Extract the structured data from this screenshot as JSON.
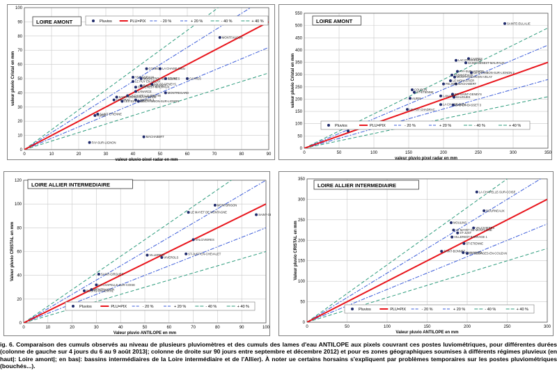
{
  "caption": "ig. 6. Comparaison des cumuls observés au niveau de plusieurs pluviomètres et des cumuls des lames d'eau ANTILOPE aux pixels couvrant ces postes luviométriques, pour différentes durées (colonne de gauche sur 4 jours du 6 au 9 août 2013|; colonne de droite sur 90 jours entre septembre et décembre 2012) et pour es zones géographiques soumises à différents régimes pluvieux (en haut|: Loire amont|; en bas|: bassins intermédiaires de la Loire intermédiaire et de l'Allier). À noter ue certains horsains s'expliquent par problèmes temporaires sur les postes pluviométriques (bouchés...).",
  "colors": {
    "points": "#1f2a6b",
    "one_to_one": "#e8141b",
    "pct20": "#3a5bd9",
    "pct40": "#2a9a7a",
    "grid": "#c8c8c8",
    "frame": "#7f7f7f"
  },
  "chart_data": [
    {
      "type": "scatter",
      "title": "LOIRE AMONT",
      "xlabel": "valeur pluvio pixel radar en mm",
      "ylabel": "valeur pluvio Cristal en mm",
      "xlim": [
        0,
        90
      ],
      "ylim": [
        0,
        100
      ],
      "xticks": [
        0,
        10,
        20,
        30,
        40,
        50,
        60,
        70,
        80,
        90
      ],
      "yticks": [
        0,
        10,
        20,
        30,
        40,
        50,
        60,
        70,
        80,
        90,
        100
      ],
      "grid": true,
      "legend": {
        "position": "top-right",
        "entries": [
          "Pluvios",
          "PLU=PIX",
          "- 20 %",
          "+ 20 %",
          "- 40 %",
          "+ 40 %"
        ]
      },
      "series": [
        {
          "name": "Pluvios",
          "points": [
            {
              "x": 72,
              "y": 79,
              "label": "MONTFAUCON"
            },
            {
              "x": 45,
              "y": 57,
              "label": "COUBON"
            },
            {
              "x": 50,
              "y": 57,
              "label": "LA CHAISE-DIEU"
            },
            {
              "x": 40,
              "y": 51,
              "label": "YSSINGEAUX"
            },
            {
              "x": 43,
              "y": 50,
              "label": "MONISTROL SUR LOIRE"
            },
            {
              "x": 52,
              "y": 50,
              "label": "FELINES"
            },
            {
              "x": 40,
              "y": 48,
              "label": "LE PUY EN VELAY"
            },
            {
              "x": 60,
              "y": 50,
              "label": "CAYRES"
            },
            {
              "x": 47,
              "y": 46,
              "label": "FIX ST GENEYS"
            },
            {
              "x": 43,
              "y": 45,
              "label": "BAS EN BASSET"
            },
            {
              "x": 41,
              "y": 44,
              "label": "ST-GENEST-MALIFAUX"
            },
            {
              "x": 41,
              "y": 41,
              "label": "LANARCE"
            },
            {
              "x": 52,
              "y": 40,
              "label": "MONTREGARD"
            },
            {
              "x": 38,
              "y": 38,
              "label": "LA CHAPELLE-BERTIN"
            },
            {
              "x": 34,
              "y": 37,
              "label": "SAINT-GERMAIN-LAPRADE"
            },
            {
              "x": 41,
              "y": 35,
              "label": "LANARCE 2"
            },
            {
              "x": 33,
              "y": 35,
              "label": "CHADRAC"
            },
            {
              "x": 36,
              "y": 34,
              "label": "LES ESTABLES"
            },
            {
              "x": 42,
              "y": 34,
              "label": "LE CHAMBON-SUR-LIGNON"
            },
            {
              "x": 27,
              "y": 25,
              "label": "SAINT-ETIENNE"
            },
            {
              "x": 26,
              "y": 24,
              "label": "AURIS"
            },
            {
              "x": 44,
              "y": 9,
              "label": "MACHABERT"
            },
            {
              "x": 24,
              "y": 5,
              "label": "FAY-SUR-LIGNON"
            }
          ]
        }
      ]
    },
    {
      "type": "scatter",
      "title": "LOIRE AMONT",
      "xlabel": "valeur pluvio pixel radar en mm",
      "ylabel": "valeur pluvio Cristal en mm",
      "xlim": [
        0,
        350
      ],
      "ylim": [
        0,
        550
      ],
      "xticks": [
        0,
        50,
        100,
        150,
        200,
        250,
        300,
        350
      ],
      "yticks": [
        0,
        50,
        100,
        150,
        200,
        250,
        300,
        350,
        400,
        450,
        500,
        550
      ],
      "grid": true,
      "legend": {
        "position": "bottom-left",
        "entries": [
          "Pluvios",
          "PLU=PIX",
          "- 20 %",
          "+ 20 %",
          "- 40 %",
          "+ 40 %"
        ]
      },
      "series": [
        {
          "name": "Pluvios",
          "points": [
            {
              "x": 288,
              "y": 508,
              "label": "SAINTE-EULALIE"
            },
            {
              "x": 236,
              "y": 365,
              "label": "CAYRES"
            },
            {
              "x": 218,
              "y": 358,
              "label": "LAC D'ISSARLES"
            },
            {
              "x": 232,
              "y": 348,
              "label": "SAINT-GENEST-MALIFAUX"
            },
            {
              "x": 220,
              "y": 313,
              "label": "FAY-SUR-LIGNON"
            },
            {
              "x": 240,
              "y": 308,
              "label": "LE CHAMBON-SUR-LIGNON 2"
            },
            {
              "x": 212,
              "y": 298,
              "label": "YSSINGEAUX"
            },
            {
              "x": 216,
              "y": 290,
              "label": "MONTFAUCON EN VELAY"
            },
            {
              "x": 210,
              "y": 275,
              "label": "LE MONASTIER"
            },
            {
              "x": 218,
              "y": 262,
              "label": "MACHABERT"
            },
            {
              "x": 200,
              "y": 262,
              "label": "FELINES"
            },
            {
              "x": 155,
              "y": 238,
              "label": "COUBON"
            },
            {
              "x": 158,
              "y": 228,
              "label": "ST-ETIENNE"
            },
            {
              "x": 213,
              "y": 220,
              "label": "FIX-SAINT-GENEYS"
            },
            {
              "x": 196,
              "y": 213,
              "label": "LANARCE"
            },
            {
              "x": 215,
              "y": 208,
              "label": "SAUGUES"
            },
            {
              "x": 152,
              "y": 203,
              "label": "AURIS"
            },
            {
              "x": 196,
              "y": 178,
              "label": "LA CHAISE-DIEU"
            },
            {
              "x": 214,
              "y": 176,
              "label": "BAS-EN-BASSET 3"
            },
            {
              "x": 148,
              "y": 158,
              "label": "LE PUY CHADRAC"
            },
            {
              "x": 63,
              "y": 70,
              "label": ""
            }
          ]
        }
      ]
    },
    {
      "type": "scatter",
      "title": "LOIRE ALLIER INTERMEDIAIRE",
      "xlabel": "Valeur pluvio ANTILOPE en mm",
      "ylabel": "Valeur pluvio CRISTAL en mm",
      "xlim": [
        0,
        100
      ],
      "ylim": [
        0,
        120
      ],
      "xticks": [
        0,
        10,
        20,
        30,
        40,
        50,
        60,
        70,
        80,
        90,
        100
      ],
      "yticks": [
        0,
        20,
        40,
        60,
        80,
        100,
        120
      ],
      "grid": true,
      "legend": {
        "position": "bottom-left",
        "entries": [
          "Pluvios",
          "PLU=PIX",
          "- 20 %",
          "+ 20 %",
          "- 40 %",
          "+ 40 %"
        ]
      },
      "series": [
        {
          "name": "Pluvios",
          "points": [
            {
              "x": 79,
              "y": 99,
              "label": "MONTBRISON"
            },
            {
              "x": 68,
              "y": 93,
              "label": "LE MAYET DE MONTAGNE"
            },
            {
              "x": 96,
              "y": 91,
              "label": "SAINT-GERMAIN-DU-COUZAN"
            },
            {
              "x": 70,
              "y": 70,
              "label": "VALCIVIERES"
            },
            {
              "x": 67,
              "y": 58,
              "label": "ST-JUST-EN-CHEVALET"
            },
            {
              "x": 51,
              "y": 57,
              "label": "VILLEREST"
            },
            {
              "x": 57,
              "y": 55,
              "label": "VIVEROLS"
            },
            {
              "x": 31,
              "y": 41,
              "label": "SAINT-CIRGUES"
            },
            {
              "x": 30,
              "y": 32,
              "label": "LA CHAPELLE-SUR-COISE"
            },
            {
              "x": 25,
              "y": 27,
              "label": "BOURG-ARGENTAL"
            },
            {
              "x": 28,
              "y": 28,
              "label": "MONTFAUCON"
            }
          ]
        }
      ]
    },
    {
      "type": "scatter",
      "title": "LOIRE ALLIER INTERMEDIAIRE",
      "xlabel": "Valeur pluvio ANTILOPE en mm",
      "ylabel": "Valeur pluvio CRISTAL en mm",
      "xlim": [
        0,
        300
      ],
      "ylim": [
        0,
        350
      ],
      "xticks": [
        0,
        50,
        100,
        150,
        200,
        250,
        300
      ],
      "yticks": [
        0,
        50,
        100,
        150,
        200,
        250,
        300,
        350
      ],
      "grid": true,
      "legend": {
        "position": "bottom-center",
        "entries": [
          "Pluvios",
          "PLU=PIX",
          "- 20 %",
          "+ 20 %",
          "- 40 %",
          "+ 40 %"
        ]
      },
      "series": [
        {
          "name": "Pluvios",
          "points": [
            {
              "x": 212,
              "y": 318,
              "label": "LA CHAPELLE-SUR-COISE"
            },
            {
              "x": 221,
              "y": 272,
              "label": "BOURNEAUX"
            },
            {
              "x": 180,
              "y": 243,
              "label": "MOULINS"
            },
            {
              "x": 208,
              "y": 230,
              "label": "VALCIVIERES"
            },
            {
              "x": 183,
              "y": 225,
              "label": "LE MAYET DE MONTAGNE"
            },
            {
              "x": 188,
              "y": 218,
              "label": "ST-JUST"
            },
            {
              "x": 181,
              "y": 208,
              "label": "VILLEREST BARRAGE 1"
            },
            {
              "x": 196,
              "y": 192,
              "label": "ST-ETIENNE"
            },
            {
              "x": 168,
              "y": 173,
              "label": "SAINT-BONNET"
            },
            {
              "x": 195,
              "y": 170,
              "label": "CHALMAZEL"
            },
            {
              "x": 200,
              "y": 168,
              "label": "ST-GEORGES-EN-COUZAN"
            }
          ]
        }
      ]
    }
  ]
}
